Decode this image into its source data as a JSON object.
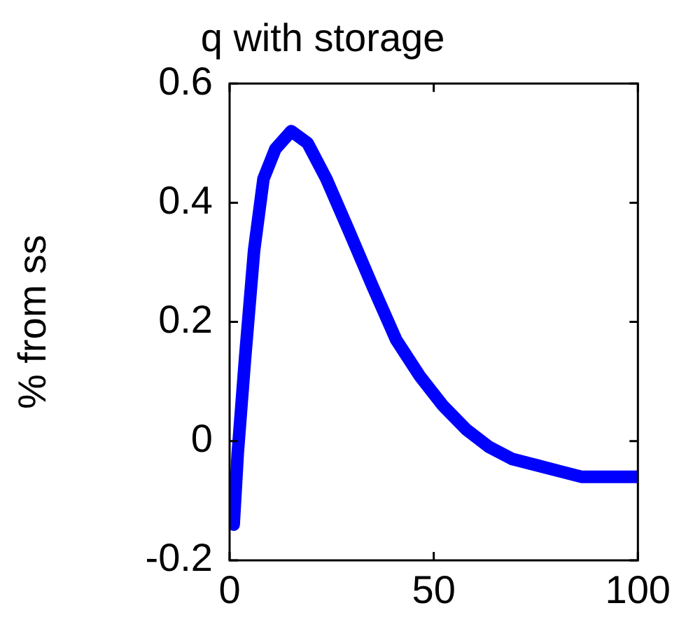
{
  "chart_data": {
    "type": "line",
    "title": "q with storage",
    "ylabel": "% from ss",
    "x": [
      1,
      2,
      3.8,
      6,
      8.3,
      11.2,
      15.1,
      19.1,
      23.7,
      29.4,
      35,
      40.8,
      46.5,
      52.2,
      57.9,
      63.6,
      69.2,
      74.9,
      80.6,
      86.3,
      92,
      100
    ],
    "series": [
      {
        "color": "#0000ff",
        "values": [
          -0.14,
          -0.02,
          0.14,
          0.32,
          0.44,
          0.49,
          0.52,
          0.5,
          0.44,
          0.35,
          0.26,
          0.17,
          0.11,
          0.06,
          0.02,
          -0.01,
          -0.03,
          -0.04,
          -0.05,
          -0.06,
          -0.06,
          -0.06
        ]
      }
    ],
    "xlim": [
      0,
      100
    ],
    "xticks": [
      0,
      50,
      100
    ],
    "ylim": [
      -0.2,
      0.6
    ],
    "yticks": [
      -0.2,
      0,
      0.2,
      0.4,
      0.6
    ],
    "grid": false,
    "legend": false,
    "marker": "none",
    "line_style": "solid"
  }
}
